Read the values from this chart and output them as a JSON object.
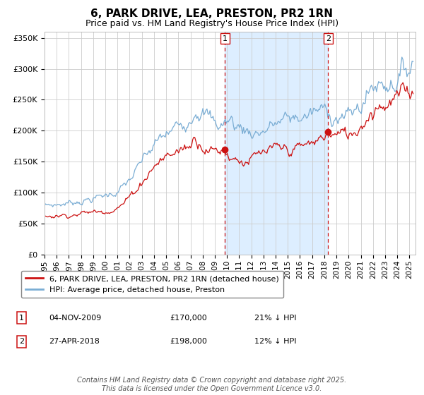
{
  "title": "6, PARK DRIVE, LEA, PRESTON, PR2 1RN",
  "subtitle": "Price paid vs. HM Land Registry's House Price Index (HPI)",
  "title_fontsize": 11,
  "subtitle_fontsize": 9,
  "ylim": [
    0,
    360000
  ],
  "xlim_start": 1995.0,
  "xlim_end": 2025.5,
  "yticks": [
    0,
    50000,
    100000,
    150000,
    200000,
    250000,
    300000,
    350000
  ],
  "ytick_labels": [
    "£0",
    "£50K",
    "£100K",
    "£150K",
    "£200K",
    "£250K",
    "£300K",
    "£350K"
  ],
  "xtick_years": [
    1995,
    1996,
    1997,
    1998,
    1999,
    2000,
    2001,
    2002,
    2003,
    2004,
    2005,
    2006,
    2007,
    2008,
    2009,
    2010,
    2011,
    2012,
    2013,
    2014,
    2015,
    2016,
    2017,
    2018,
    2019,
    2020,
    2021,
    2022,
    2023,
    2024,
    2025
  ],
  "grid_color": "#cccccc",
  "background_color": "#ffffff",
  "plot_bg_color": "#ffffff",
  "hpi_color": "#7aadd4",
  "price_color": "#cc1111",
  "sale1_x": 2009.843,
  "sale1_y": 170000,
  "sale1_label": "1",
  "sale1_date": "04-NOV-2009",
  "sale1_price": "£170,000",
  "sale1_hpi": "21% ↓ HPI",
  "sale2_x": 2018.32,
  "sale2_y": 198000,
  "sale2_label": "2",
  "sale2_date": "27-APR-2018",
  "sale2_price": "£198,000",
  "sale2_hpi": "12% ↓ HPI",
  "shade_start": 2009.843,
  "shade_end": 2018.32,
  "shade_color": "#ddeeff",
  "dashed_line_color": "#cc1111",
  "legend_label1": "6, PARK DRIVE, LEA, PRESTON, PR2 1RN (detached house)",
  "legend_label2": "HPI: Average price, detached house, Preston",
  "footer": "Contains HM Land Registry data © Crown copyright and database right 2025.\nThis data is licensed under the Open Government Licence v3.0.",
  "footer_fontsize": 7
}
